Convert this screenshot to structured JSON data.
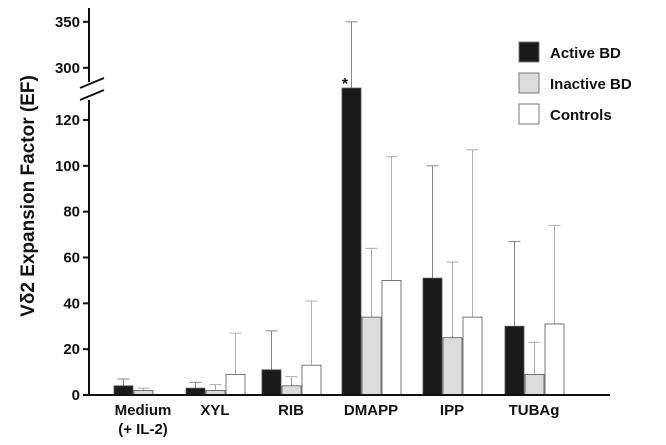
{
  "chart_data": {
    "type": "bar",
    "title": "",
    "xlabel": "",
    "ylabel": "Vδ2 Expansion Factor (EF)",
    "axis_break": {
      "lower_max": 130,
      "upper_min": 290,
      "upper_max": 360
    },
    "yticks_lower": [
      "0",
      "20",
      "40",
      "60",
      "80",
      "100",
      "120"
    ],
    "yticks_upper": [
      "300",
      "350"
    ],
    "categories": [
      "Medium\n(+ IL-2)",
      "XYL",
      "RIB",
      "DMAPP",
      "IPP",
      "TUBAg"
    ],
    "series": [
      {
        "name": "Active BD",
        "color": "#1a1a1a",
        "values": [
          4,
          3,
          11,
          278,
          51,
          30
        ],
        "errors": [
          3,
          2.5,
          17,
          72,
          49,
          37
        ]
      },
      {
        "name": "Inactive BD",
        "color": "#dcdcdc",
        "values": [
          2,
          2,
          4,
          34,
          25,
          9
        ],
        "errors": [
          1,
          2.5,
          4,
          30,
          33,
          14
        ]
      },
      {
        "name": "Controls",
        "color": "#ffffff",
        "values": [
          0,
          9,
          13,
          50,
          34,
          31
        ],
        "errors": [
          0,
          18,
          28,
          54,
          73,
          43
        ]
      }
    ],
    "annotations": [
      {
        "category": "DMAPP",
        "series": "Active BD",
        "text": "*"
      }
    ],
    "grid": false,
    "legend": "top-right"
  }
}
